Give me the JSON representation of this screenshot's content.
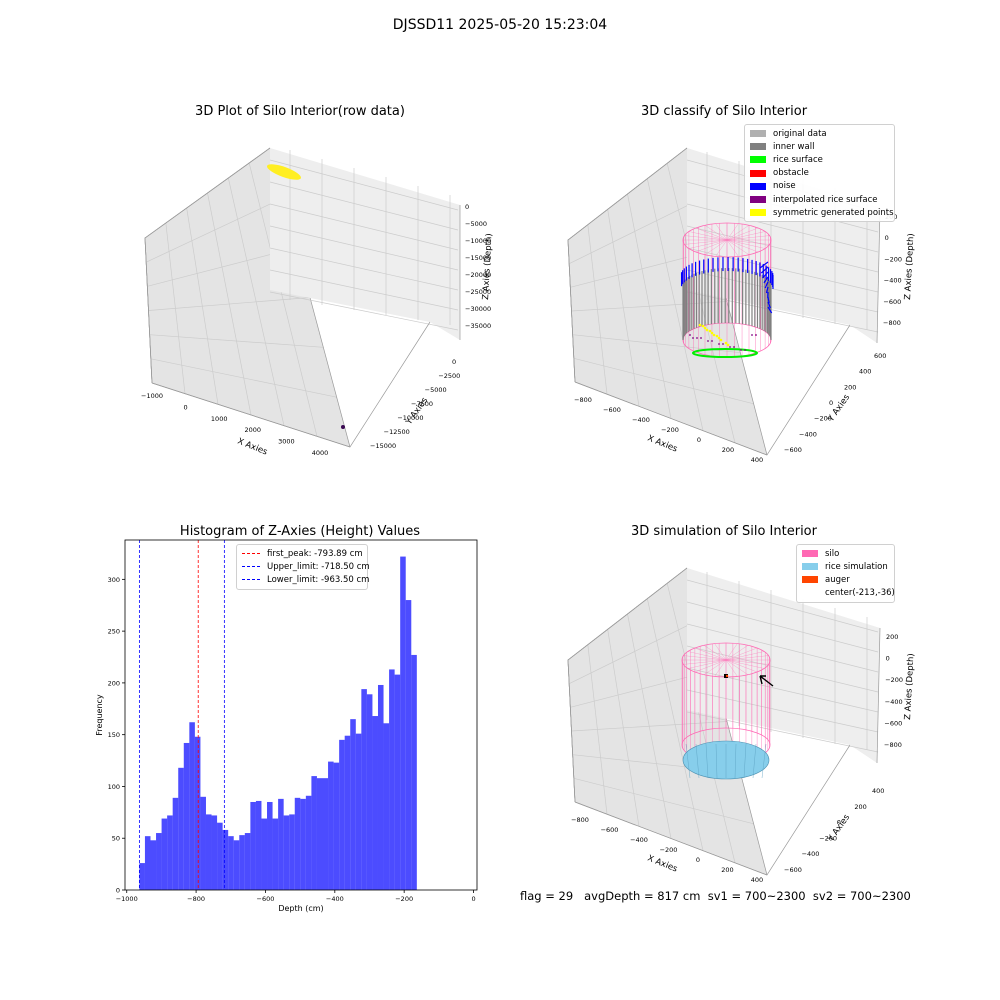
{
  "figure": {
    "title": "DJSSD11 2025-05-20 15:23:04",
    "status_line": "flag = 29   avgDepth = 817 cm  sv1 = 700~2300  sv2 = 700~2300"
  },
  "colors": {
    "hist_bar": "#0000ff",
    "peak_line": "#ff0000",
    "limit_line": "#0000ff",
    "silo": "#ff69b4",
    "rice_simulation": "#87ceeb",
    "auger": "#ff4500",
    "raw_points": "#ffee22",
    "inner_wall": "#808080",
    "rice_surface": "#00ee00",
    "noise": "#0000ff",
    "interpolated": "#800080",
    "symmetric": "#ffff00"
  },
  "panels": {
    "raw": {
      "title": "3D Plot of Silo Interior(row data)",
      "xlabel": "X Axies",
      "ylabel": "Y Axies",
      "zlabel": "Z Axies (Depth)",
      "xticks": [
        "−1000",
        "0",
        "1000",
        "2000",
        "3000",
        "4000"
      ],
      "yticks": [
        "0",
        "−2500",
        "−5000",
        "−7500",
        "−10000",
        "−12500",
        "−15000"
      ],
      "zticks": [
        "0",
        "−5000",
        "−10000",
        "−15000",
        "−20000",
        "−25000",
        "−30000",
        "−35000"
      ]
    },
    "classify": {
      "title": "3D classify of Silo Interior",
      "xlabel": "X Axies",
      "ylabel": "Y Axies",
      "zlabel": "Z Axies (Depth)",
      "xticks": [
        "−800",
        "−600",
        "−400",
        "−200",
        "0",
        "200",
        "400"
      ],
      "yticks": [
        "600",
        "400",
        "200",
        "0",
        "−200",
        "−400",
        "−600"
      ],
      "zticks": [
        "200",
        "0",
        "−200",
        "−400",
        "−600",
        "−800"
      ],
      "legend": [
        {
          "label": "original data",
          "color": "#b0b0b0"
        },
        {
          "label": "inner wall",
          "color": "#808080"
        },
        {
          "label": "rice surface",
          "color": "#00ff00"
        },
        {
          "label": "obstacle",
          "color": "#ff0000"
        },
        {
          "label": "noise",
          "color": "#0000ff"
        },
        {
          "label": "interpolated rice surface",
          "color": "#800080"
        },
        {
          "label": "symmetric generated points",
          "color": "#ffff00"
        }
      ]
    },
    "simulation": {
      "title": "3D simulation of Silo Interior",
      "xlabel": "X Axies",
      "ylabel": "Y Axies",
      "zlabel": "Z Axies (Depth)",
      "xticks": [
        "−800",
        "−600",
        "−400",
        "−200",
        "0",
        "200",
        "400"
      ],
      "yticks": [
        "400",
        "200",
        "0",
        "−200",
        "−400",
        "−600"
      ],
      "zticks": [
        "200",
        "0",
        "−200",
        "−400",
        "−600",
        "−800"
      ],
      "legend": [
        {
          "label": "silo",
          "color": "#ff69b4"
        },
        {
          "label": "rice simulation",
          "color": "#87ceeb"
        },
        {
          "label": "auger",
          "color": "#ff4500"
        },
        {
          "label": "center(-213,-36)",
          "color": ""
        }
      ]
    }
  },
  "chart_data": {
    "type": "bar",
    "title": "Histogram of Z-Axies (Height) Values",
    "xlabel": "Depth (cm)",
    "ylabel": "Frequency",
    "xlim": [
      -1005,
      10
    ],
    "ylim": [
      0,
      338
    ],
    "xticks": [
      -1000,
      -800,
      -600,
      -400,
      -200,
      0
    ],
    "yticks": [
      0,
      50,
      100,
      150,
      200,
      250,
      300
    ],
    "grid": false,
    "legend_placement": "top-center",
    "bins": {
      "start": -963.5,
      "width": 16.0,
      "counts": [
        26,
        52,
        48,
        55,
        69,
        72,
        89,
        118,
        142,
        162,
        148,
        90,
        73,
        72,
        65,
        58,
        52,
        48,
        53,
        55,
        85,
        86,
        69,
        85,
        69,
        88,
        72,
        73,
        89,
        88,
        91,
        110,
        108,
        108,
        124,
        123,
        145,
        149,
        165,
        151,
        194,
        189,
        168,
        198,
        161,
        213,
        208,
        322,
        280,
        227
      ]
    },
    "reference_lines": [
      {
        "name": "first_peak",
        "value": -793.89,
        "label": "first_peak: -793.89 cm",
        "color": "#ff0000"
      },
      {
        "name": "Upper_limit",
        "value": -718.5,
        "label": "Upper_limit: -718.50 cm",
        "color": "#0000ff"
      },
      {
        "name": "Lower_limit",
        "value": -963.5,
        "label": "Lower_limit: -963.50 cm",
        "color": "#0000ff"
      }
    ]
  }
}
